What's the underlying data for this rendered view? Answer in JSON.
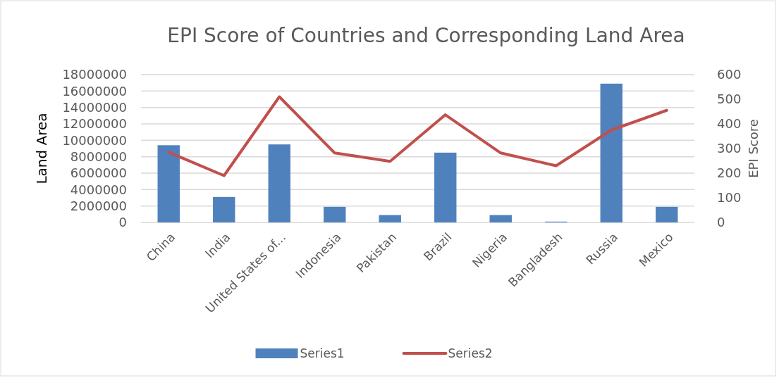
{
  "chart_data": {
    "type": "bar",
    "title": "EPI Score of Countries and Corresponding Land Area",
    "ylabel": "Land Area",
    "y2label": "EPI Score",
    "categories": [
      "China",
      "India",
      "United States of...",
      "Indonesia",
      "Pakistan",
      "Brazil",
      "Nigeria",
      "Bangladesh",
      "Russia",
      "Mexico"
    ],
    "series": [
      {
        "name": "Series1",
        "color": "#4f81bd",
        "values": [
          9400000,
          3100000,
          9500000,
          1900000,
          900000,
          8500000,
          900000,
          100000,
          16900000,
          1900000
        ]
      },
      {
        "name": "Series2",
        "type": "line",
        "axis": "y2",
        "color": "#c0504d",
        "values": [
          285,
          190,
          510,
          282,
          248,
          437,
          282,
          230,
          375,
          455
        ]
      }
    ],
    "ylim": [
      0,
      18000000
    ],
    "yticks": [
      0,
      2000000,
      4000000,
      6000000,
      8000000,
      10000000,
      12000000,
      14000000,
      16000000,
      18000000
    ],
    "y2lim": [
      0,
      600
    ],
    "y2ticks": [
      0,
      100,
      200,
      300,
      400,
      500,
      600
    ],
    "grid": "y",
    "legend": "bottom"
  }
}
